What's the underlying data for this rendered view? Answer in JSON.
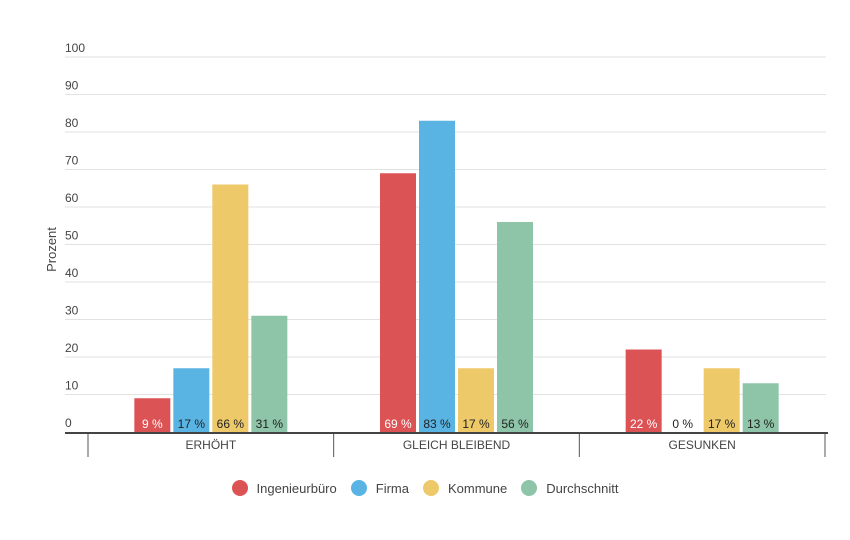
{
  "chart_data": {
    "type": "bar",
    "title": "",
    "xlabel": "",
    "ylabel": "Prozent",
    "ylim": [
      0,
      100
    ],
    "yticks": [
      0,
      10,
      20,
      30,
      40,
      50,
      60,
      70,
      80,
      90,
      100
    ],
    "grid": true,
    "legend": "bottom",
    "categories": [
      "ERHÖHT",
      "GLEICH BLEIBEND",
      "GESUNKEN"
    ],
    "series": [
      {
        "name": "Ingenieurbüro",
        "color": "#dc5356",
        "label_color": "#ffffff",
        "values": [
          9,
          69,
          22
        ],
        "labels": [
          "9 %",
          "69 %",
          "22 %"
        ]
      },
      {
        "name": "Firma",
        "color": "#5ab4e3",
        "label_color": "#222222",
        "values": [
          17,
          83,
          0
        ],
        "labels": [
          "17 %",
          "83 %",
          "0 %"
        ]
      },
      {
        "name": "Kommune",
        "color": "#edc96a",
        "label_color": "#222222",
        "values": [
          66,
          17,
          17
        ],
        "labels": [
          "66 %",
          "17 %",
          "17 %"
        ]
      },
      {
        "name": "Durchschnitt",
        "color": "#8ec4a7",
        "label_color": "#222222",
        "values": [
          31,
          56,
          13
        ],
        "labels": [
          "31 %",
          "56 %",
          "13 %"
        ]
      }
    ]
  }
}
